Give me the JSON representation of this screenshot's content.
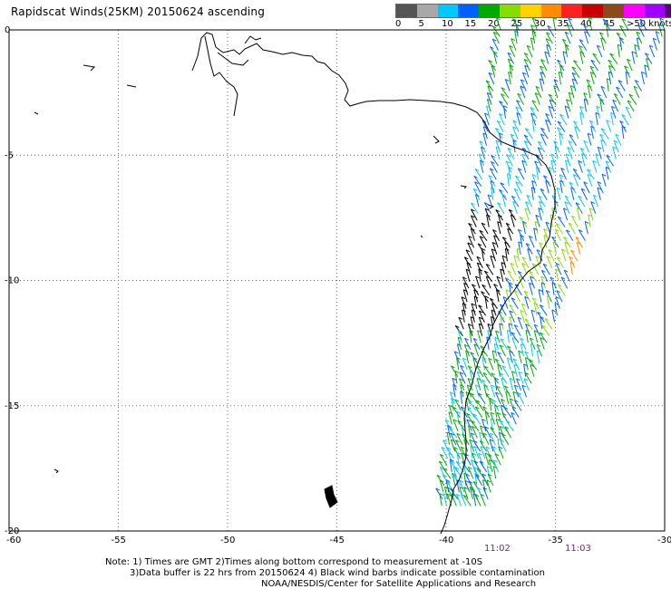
{
  "title": "Rapidscat Winds(25KM) 20150624 ascending",
  "legend": {
    "colors": [
      "#555555",
      "#a8a8a8",
      "#00c8ff",
      "#0060ff",
      "#00aa00",
      "#88dd00",
      "#ffd200",
      "#ff8c00",
      "#ff2020",
      "#c80000",
      "#8c4a1a",
      "#ff00ff",
      "#a000ff",
      "#5a0078"
    ],
    "labels": [
      "0",
      "5",
      "10",
      "15",
      "20",
      "25",
      "30",
      "35",
      "40",
      "45",
      ">50 knots"
    ]
  },
  "axes": {
    "x_ticks": [
      "-60",
      "-55",
      "-50",
      "-45",
      "-40",
      "-35",
      "-30"
    ],
    "y_ticks": [
      "0",
      "-5",
      "-10",
      "-15",
      "-20"
    ]
  },
  "times": [
    "11:02",
    "11:03"
  ],
  "notes": [
    "Note: 1) Times are GMT 2)Times along bottom correspond to measurement at -10S",
    "3)Data buffer is 22 hrs from 20150624 4) Black wind barbs indicate possible contamination",
    "NOAA/NESDIS/Center for Satellite Applications and Research"
  ],
  "chart_data": {
    "type": "wind-barb map",
    "title": "Rapidscat Winds(25KM) 20150624 ascending",
    "xlim": [
      -60,
      -30
    ],
    "ylim": [
      -20,
      0
    ],
    "x_ticks": [
      -60,
      -55,
      -50,
      -45,
      -40,
      -35,
      -30
    ],
    "y_ticks": [
      0,
      -5,
      -10,
      -15,
      -20
    ],
    "units": "knots",
    "grid": true,
    "swath": {
      "north_west": [
        -37.5,
        0
      ],
      "north_east": [
        -30,
        0
      ],
      "south_west": [
        -40.2,
        -19
      ],
      "south_east": [
        -38.2,
        -17.3
      ]
    }
  }
}
